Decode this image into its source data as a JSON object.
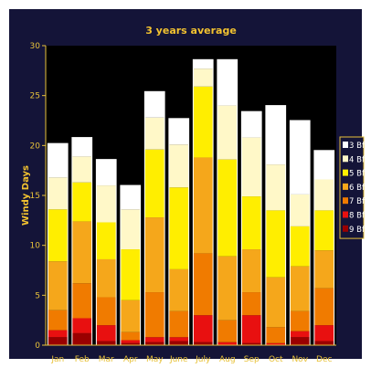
{
  "colors": {
    "background": "#141438",
    "plot_background": "#000000",
    "axis": "#e8c23a",
    "title": "#f2c230",
    "bar_outline": "#ffffff",
    "legend_border": "#e8c23a"
  },
  "chart_data": {
    "type": "bar",
    "stacked": true,
    "title": "3 years average",
    "xlabel": "",
    "ylabel": "Windy Days",
    "ylim": [
      0,
      30
    ],
    "yticks": [
      "0",
      "5",
      "10",
      "15",
      "20",
      "25",
      "30"
    ],
    "grid": false,
    "legend_position": "right",
    "categories": [
      "Jan",
      "Feb",
      "Mar",
      "Apr",
      "May",
      "June",
      "July",
      "Aug",
      "Sep",
      "Oct",
      "Nov",
      "Dec"
    ],
    "series": [
      {
        "name": "9 Bft",
        "color": "#9a0000",
        "values": [
          0.8,
          1.2,
          0.4,
          0.2,
          0.3,
          0.4,
          0.3,
          0.0,
          0.2,
          0.0,
          0.8,
          0.4
        ]
      },
      {
        "name": "8 Bft",
        "color": "#e81010",
        "values": [
          0.7,
          1.5,
          1.6,
          0.3,
          0.5,
          0.4,
          2.7,
          0.3,
          2.8,
          0.2,
          0.6,
          1.6
        ]
      },
      {
        "name": "7 Bft",
        "color": "#f07b00",
        "values": [
          2.0,
          3.5,
          2.8,
          0.8,
          4.5,
          2.6,
          6.2,
          2.2,
          2.3,
          1.6,
          2.0,
          3.7
        ]
      },
      {
        "name": "6 Bft",
        "color": "#f5a71b",
        "values": [
          4.9,
          6.2,
          3.8,
          3.2,
          7.5,
          4.2,
          9.6,
          6.4,
          4.3,
          5.0,
          4.5,
          3.8
        ]
      },
      {
        "name": "5 Bft",
        "color": "#ffee00",
        "values": [
          5.2,
          3.9,
          3.7,
          5.1,
          6.8,
          8.2,
          7.1,
          9.7,
          5.3,
          6.7,
          4.0,
          4.0
        ]
      },
      {
        "name": "4 Bft",
        "color": "#fff8c8",
        "values": [
          3.2,
          2.6,
          3.7,
          4.0,
          3.2,
          4.3,
          1.8,
          5.4,
          5.9,
          4.6,
          3.2,
          3.1
        ]
      },
      {
        "name": "3 Bft",
        "color": "#ffffff",
        "values": [
          3.4,
          1.9,
          2.6,
          2.4,
          2.6,
          2.6,
          0.9,
          4.6,
          2.6,
          5.9,
          7.4,
          2.9
        ]
      }
    ]
  }
}
